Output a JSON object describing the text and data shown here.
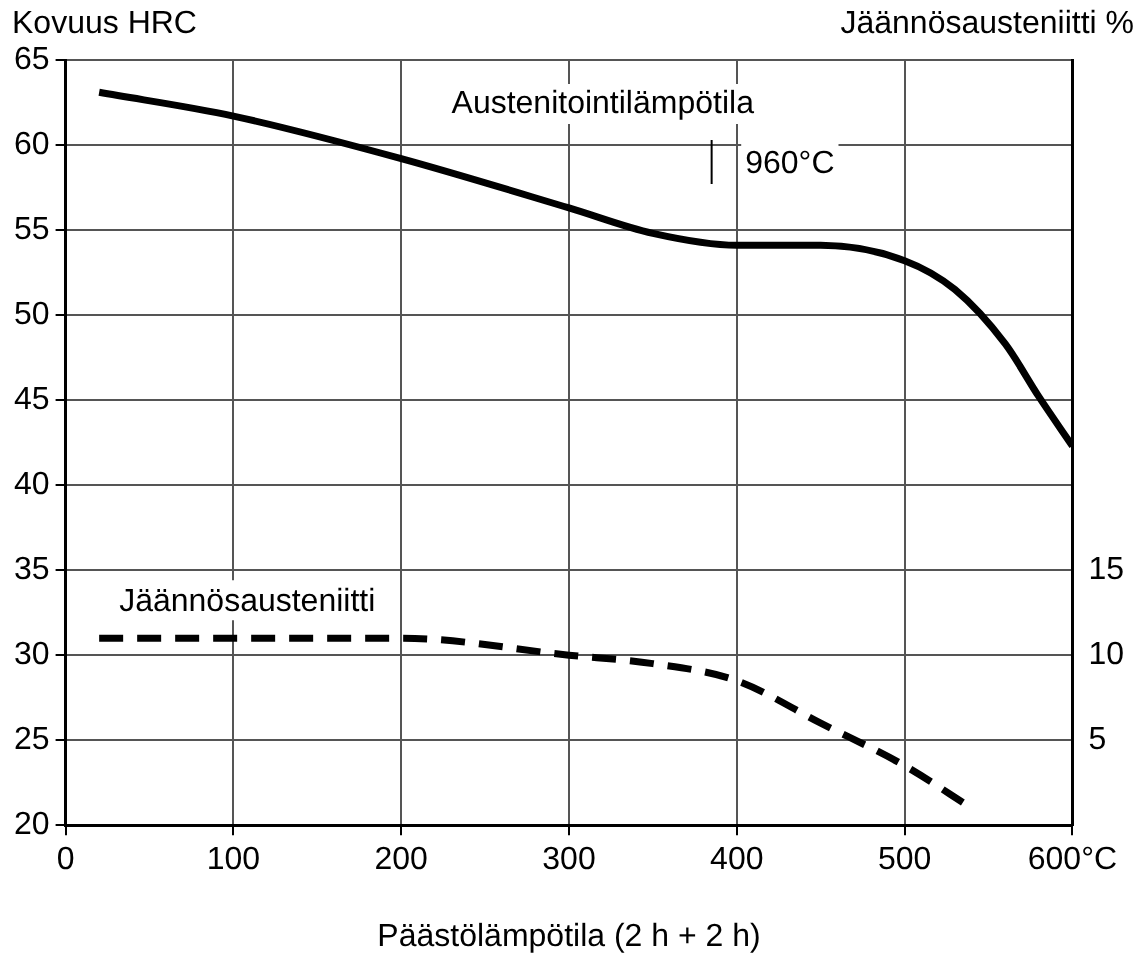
{
  "chart_data": {
    "type": "line",
    "xlabel": "Päästölämpötila (2 h + 2 h)",
    "ylabel": "Kovuus HRC",
    "y2label": "Jäännösausteniitti %",
    "annotations": [
      "Austenitointilämpötila",
      "960°C"
    ],
    "xlim": [
      0,
      600
    ],
    "xticks": [
      0,
      100,
      200,
      300,
      400,
      500,
      {
        "value": 600,
        "label": "600°C"
      }
    ],
    "ylim": [
      20,
      65
    ],
    "yticks": [
      20,
      25,
      30,
      35,
      40,
      45,
      50,
      55,
      60,
      65
    ],
    "y2lim": [
      0,
      45
    ],
    "y2ticks": [
      5,
      10,
      15
    ],
    "grid": true,
    "legend": false,
    "marker": "none",
    "series": [
      {
        "color": "#000000",
        "line_style": "solid",
        "x": [
          20,
          100,
          200,
          300,
          350,
          400,
          450,
          500,
          530,
          560,
          580,
          600
        ],
        "values": [
          63.1,
          61.7,
          59.2,
          56.3,
          54.8,
          54.1,
          54.1,
          53.2,
          51.5,
          48.3,
          45.2,
          42.3
        ]
      },
      {
        "name": "Jäännösausteniitti",
        "color": "#000000",
        "line_style": "dashed",
        "axis": "y2",
        "x": [
          20,
          200,
          300,
          350,
          400,
          450,
          500,
          540
        ],
        "values": [
          11,
          11,
          10,
          9.5,
          8.5,
          6,
          3.5,
          1
        ]
      }
    ]
  }
}
